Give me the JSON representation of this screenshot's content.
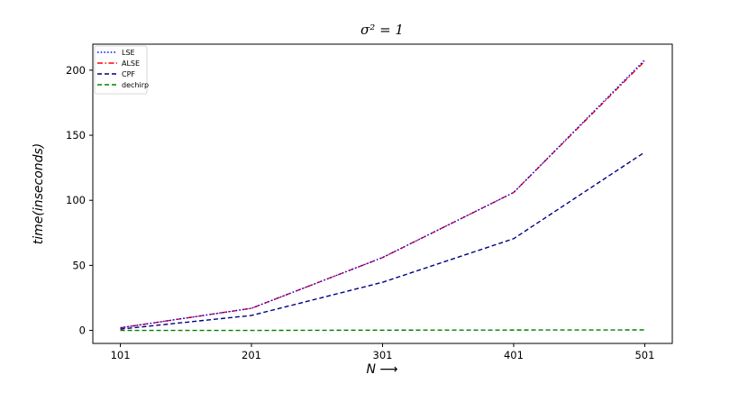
{
  "chart_data": {
    "type": "line",
    "title": "σ² = 1",
    "xlabel": "N ⟶",
    "ylabel": "time(inseconds)",
    "x": [
      101,
      201,
      301,
      401,
      501
    ],
    "x_ticks": [
      "101",
      "201",
      "301",
      "401",
      "501"
    ],
    "y_ticks": [
      "0",
      "50",
      "100",
      "150",
      "200"
    ],
    "ylim": [
      -10,
      220
    ],
    "xlim": [
      80,
      522
    ],
    "grid": false,
    "legend_position": "top-left",
    "series": [
      {
        "name": "LSE",
        "color": "#0000ff",
        "style": "dotted",
        "values": [
          2,
          17,
          56,
          106,
          208
        ]
      },
      {
        "name": "ALSE",
        "color": "#ff0000",
        "style": "dashdot",
        "values": [
          2,
          17,
          56,
          106,
          207
        ]
      },
      {
        "name": "CPF",
        "color": "#000080",
        "style": "dashed",
        "values": [
          1,
          11.5,
          37,
          70.5,
          137
        ]
      },
      {
        "name": "dechirp",
        "color": "#008000",
        "style": "dashed",
        "values": [
          0,
          0,
          0.2,
          0.3,
          0.4
        ]
      }
    ]
  }
}
